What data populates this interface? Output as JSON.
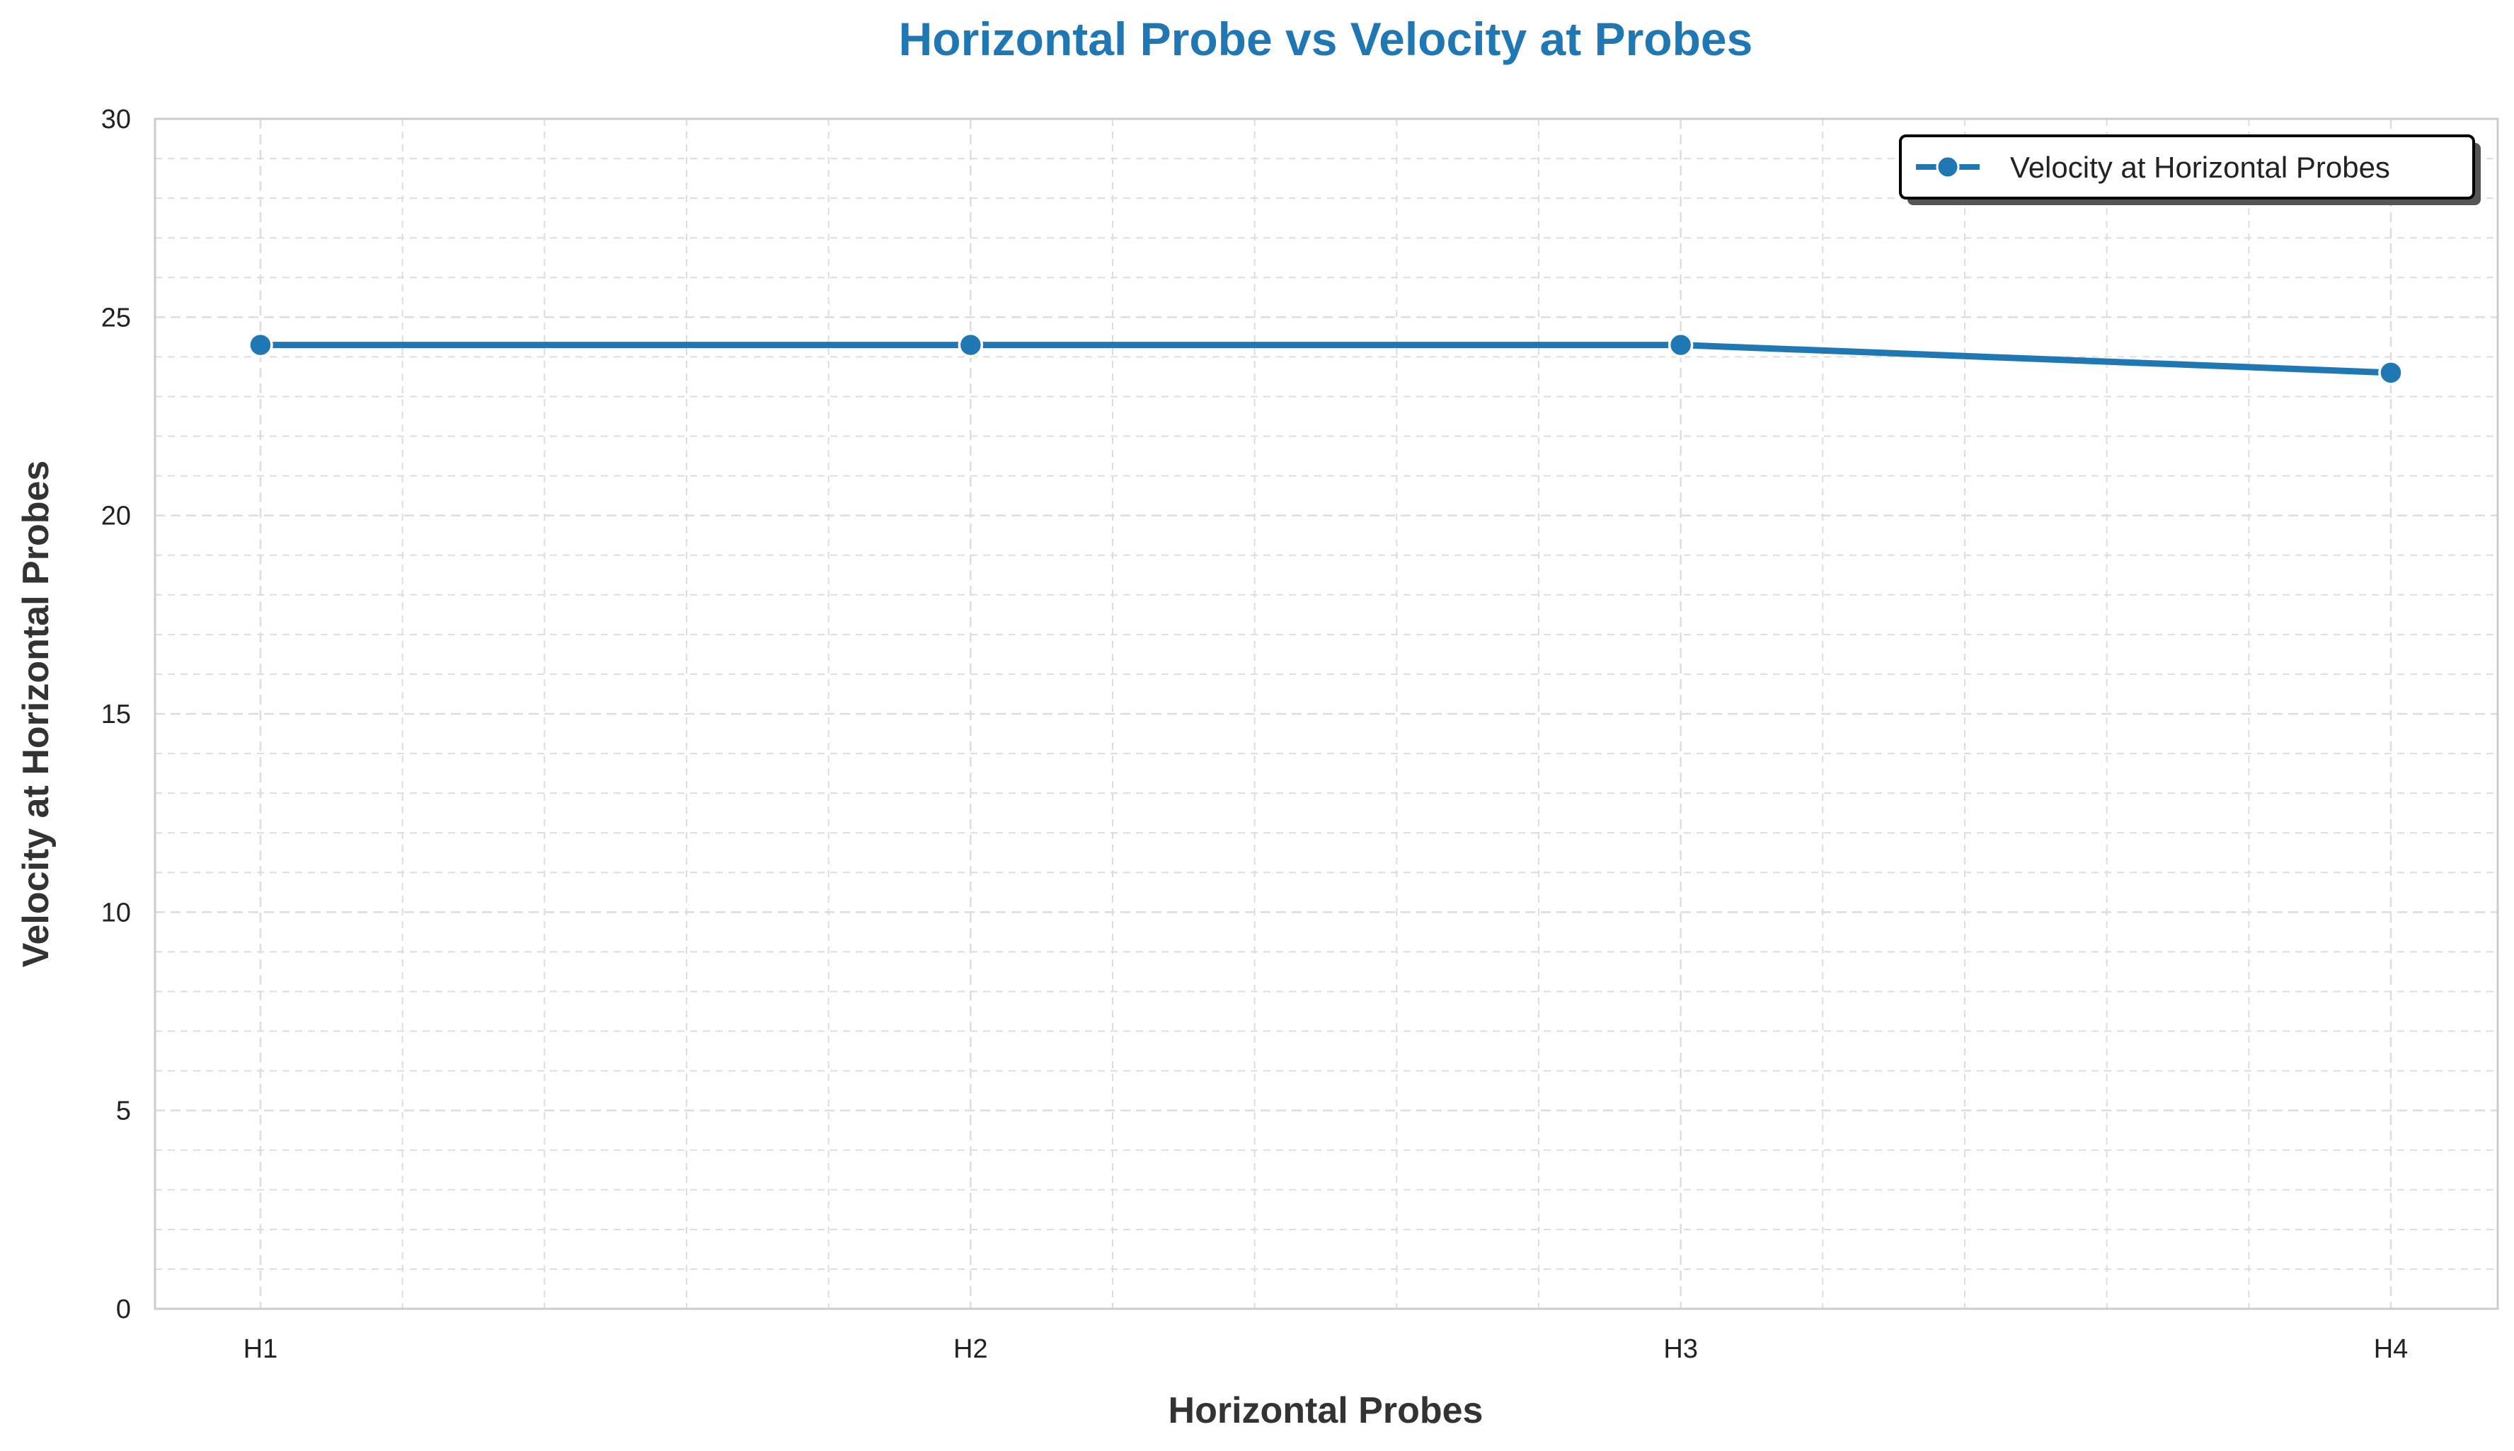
{
  "chart_data": {
    "type": "line",
    "title": "Horizontal Probe vs Velocity at Probes",
    "xlabel": "Horizontal Probes",
    "ylabel": "Velocity at Horizontal Probes",
    "categories": [
      "H1",
      "H2",
      "H3",
      "H4"
    ],
    "series": [
      {
        "name": "Velocity at Horizontal Probes",
        "values": [
          24.3,
          24.3,
          24.3,
          23.6
        ]
      }
    ],
    "ylim": [
      0,
      30
    ],
    "yticks": [
      0,
      5,
      10,
      15,
      20,
      25,
      30
    ],
    "grid": true,
    "minor_grid": true,
    "legend": "upper right",
    "colors": {
      "line": "#1f77b4",
      "title": "#1f77b4",
      "grid": "#dddddd",
      "spine": "#cccccc"
    }
  }
}
